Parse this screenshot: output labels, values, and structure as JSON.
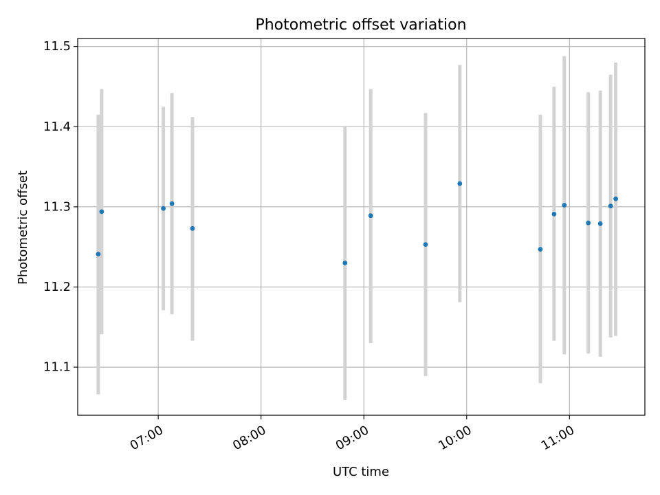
{
  "chart_data": {
    "type": "scatter",
    "title": "Photometric offset variation",
    "xlabel": "UTC time",
    "ylabel": "Photometric offset",
    "xlim": [
      "06:13",
      "11:44"
    ],
    "ylim": [
      11.04,
      11.51
    ],
    "grid": true,
    "x_ticks": [
      "07:00",
      "08:00",
      "09:00",
      "10:00",
      "11:00"
    ],
    "y_ticks": [
      "11.1",
      "11.2",
      "11.3",
      "11.4",
      "11.5"
    ],
    "points": [
      {
        "x": "06:25",
        "y": 11.241,
        "yerr_low": 11.066,
        "yerr_high": 11.415
      },
      {
        "x": "06:27",
        "y": 11.294,
        "yerr_low": 11.141,
        "yerr_high": 11.447
      },
      {
        "x": "07:03",
        "y": 11.298,
        "yerr_low": 11.171,
        "yerr_high": 11.425
      },
      {
        "x": "07:08",
        "y": 11.304,
        "yerr_low": 11.166,
        "yerr_high": 11.442
      },
      {
        "x": "07:20",
        "y": 11.273,
        "yerr_low": 11.133,
        "yerr_high": 11.412
      },
      {
        "x": "08:49",
        "y": 11.23,
        "yerr_low": 11.059,
        "yerr_high": 11.401
      },
      {
        "x": "09:04",
        "y": 11.289,
        "yerr_low": 11.13,
        "yerr_high": 11.447
      },
      {
        "x": "09:36",
        "y": 11.253,
        "yerr_low": 11.089,
        "yerr_high": 11.417
      },
      {
        "x": "09:56",
        "y": 11.329,
        "yerr_low": 11.181,
        "yerr_high": 11.477
      },
      {
        "x": "10:43",
        "y": 11.247,
        "yerr_low": 11.08,
        "yerr_high": 11.415
      },
      {
        "x": "10:51",
        "y": 11.291,
        "yerr_low": 11.133,
        "yerr_high": 11.45
      },
      {
        "x": "10:57",
        "y": 11.302,
        "yerr_low": 11.116,
        "yerr_high": 11.488
      },
      {
        "x": "11:11",
        "y": 11.28,
        "yerr_low": 11.117,
        "yerr_high": 11.443
      },
      {
        "x": "11:18",
        "y": 11.279,
        "yerr_low": 11.113,
        "yerr_high": 11.445
      },
      {
        "x": "11:24",
        "y": 11.301,
        "yerr_low": 11.137,
        "yerr_high": 11.465
      },
      {
        "x": "11:27",
        "y": 11.31,
        "yerr_low": 11.139,
        "yerr_high": 11.48
      }
    ],
    "colors": {
      "marker": "#1f77b4",
      "errorbar": "#d3d3d3",
      "grid": "#b0b0b0",
      "axes": "#000000"
    }
  }
}
